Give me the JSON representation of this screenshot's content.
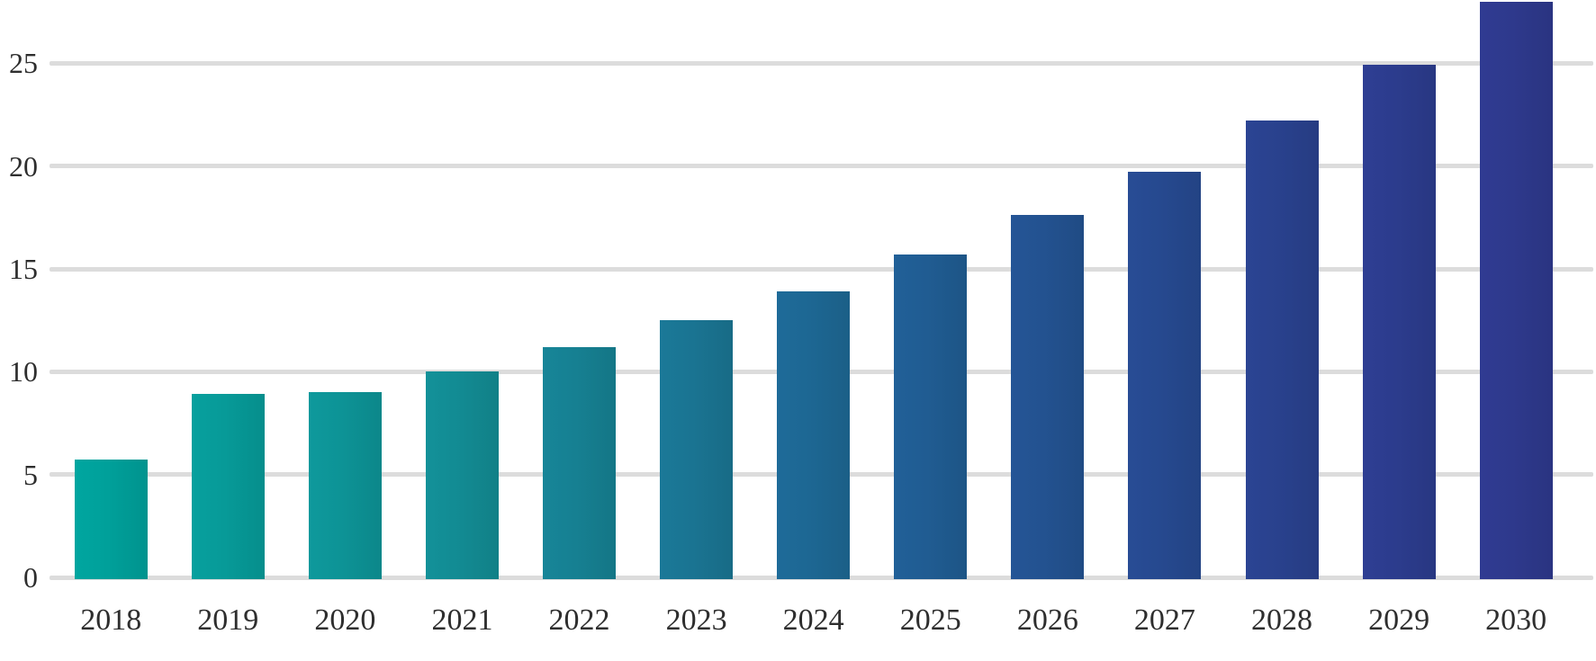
{
  "chart_data": {
    "type": "bar",
    "title": "",
    "xlabel": "",
    "ylabel": "",
    "categories": [
      "2018",
      "2019",
      "2020",
      "2021",
      "2022",
      "2023",
      "2024",
      "2025",
      "2026",
      "2027",
      "2028",
      "2029",
      "2030"
    ],
    "values": [
      5.8,
      9.0,
      9.1,
      10.1,
      11.3,
      12.6,
      14.0,
      15.8,
      17.7,
      19.8,
      22.3,
      25.0,
      28.1
    ],
    "yticks": [
      0,
      5,
      10,
      15,
      20,
      25
    ],
    "ylim": [
      0,
      28.1
    ],
    "grid": true,
    "legend": "none",
    "note": "last bar (2030) is clipped by the top edge of the image",
    "colors": {
      "bars": [
        "#00A09A",
        "#079A98",
        "#0D9396",
        "#128B93",
        "#168092",
        "#1A7492",
        "#1D6793",
        "#205C92",
        "#235290",
        "#26498F",
        "#29418D",
        "#2C3C8D",
        "#2E398C"
      ],
      "gridline": "#DCDCDC",
      "tick_label": "#2E2E2E",
      "background": "#FFFFFF"
    }
  }
}
